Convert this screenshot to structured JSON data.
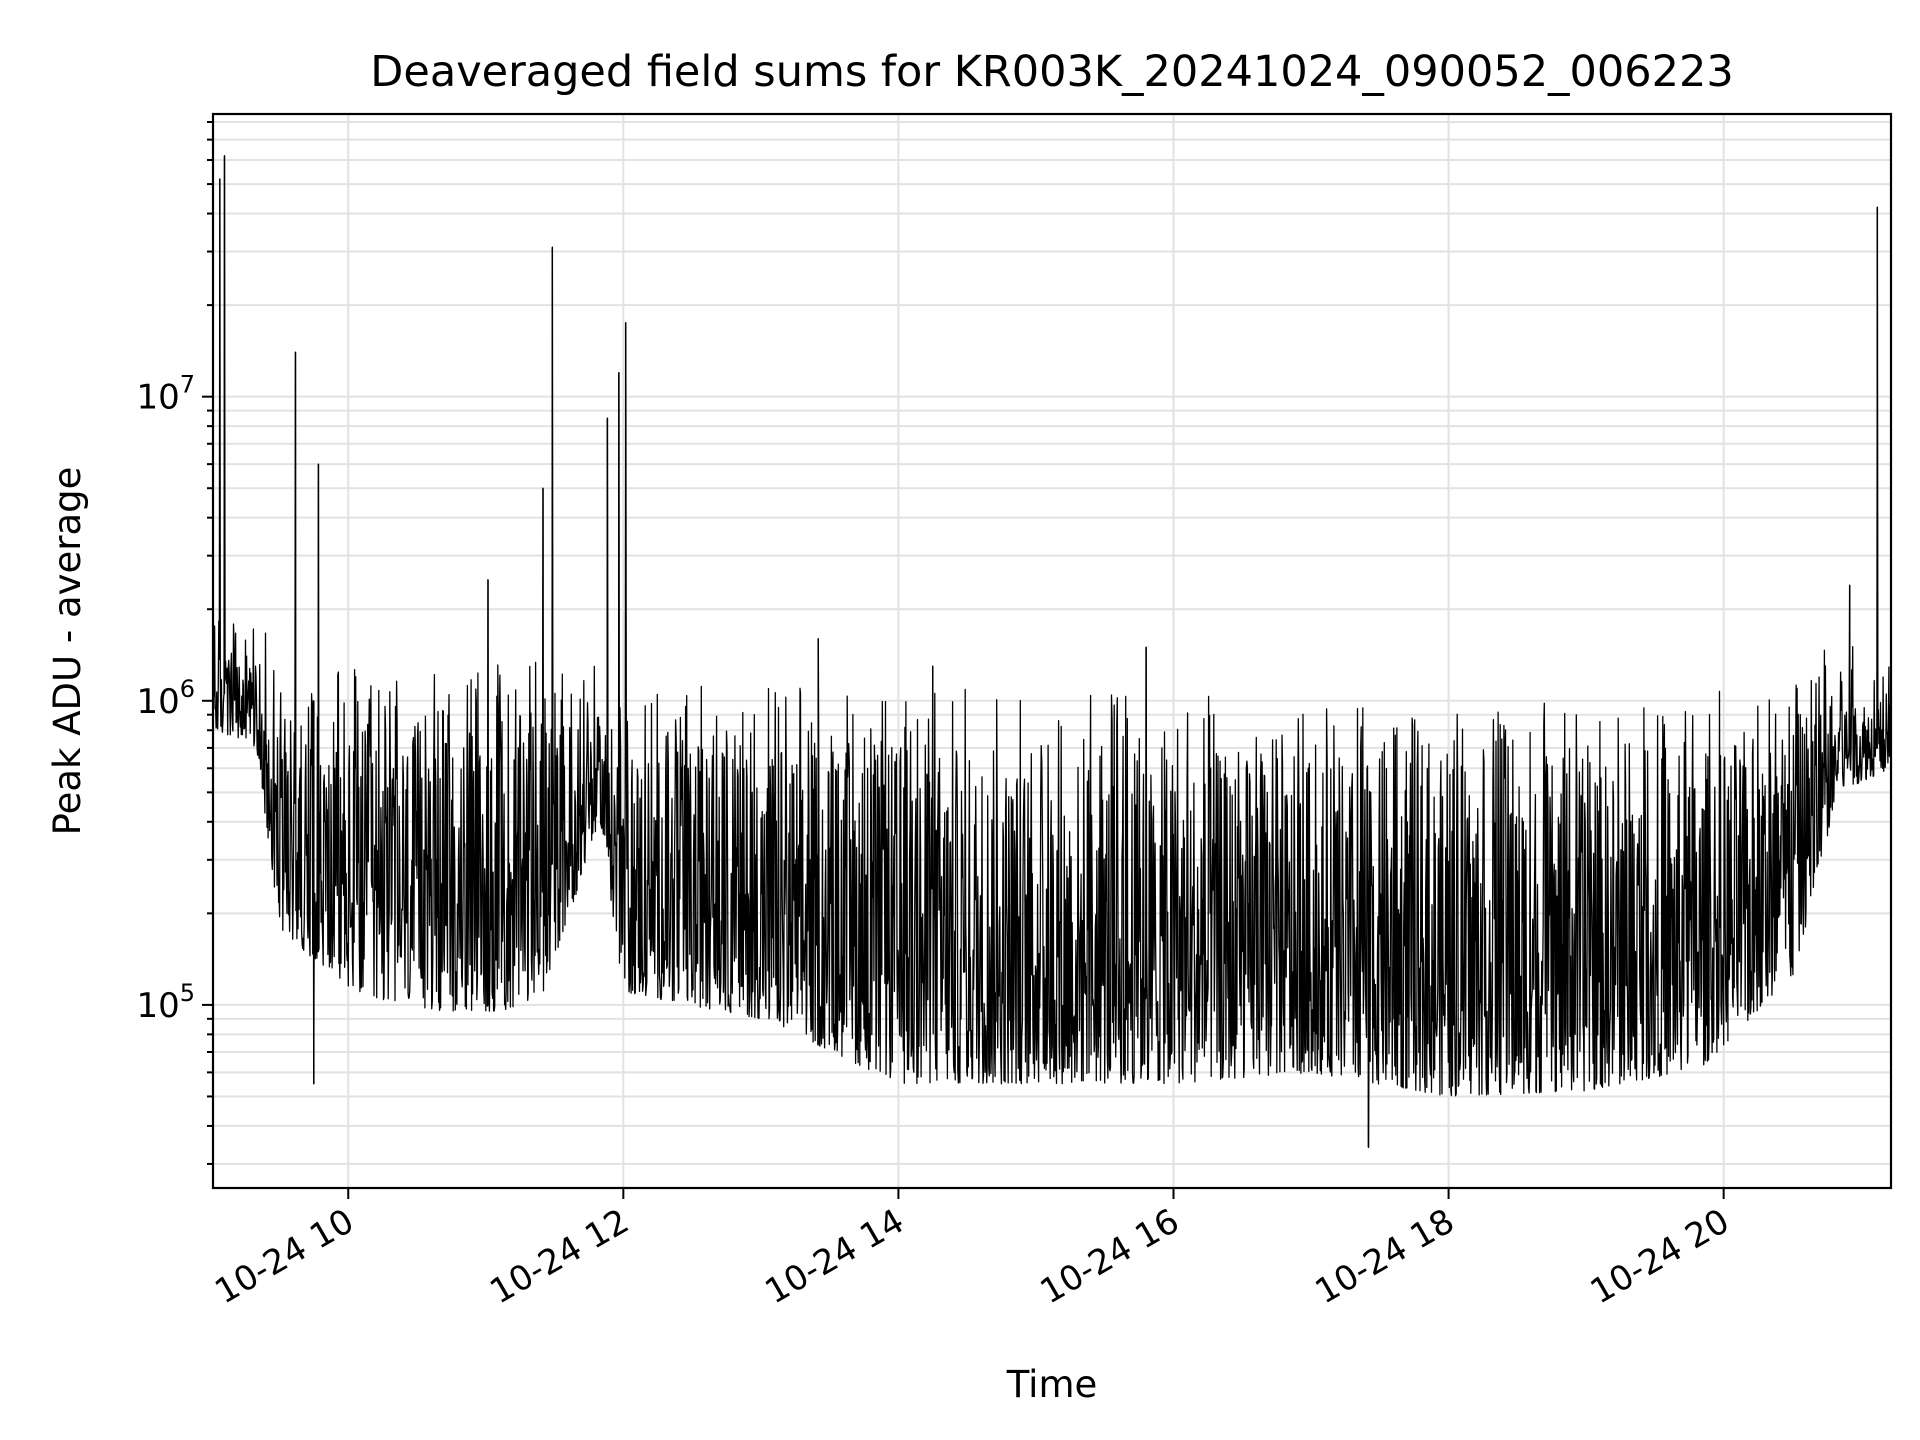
{
  "chart_data": {
    "type": "line",
    "title": "Deaveraged field sums for KR003K_20241024_090052_006223",
    "xlabel": "Time",
    "ylabel": "Peak ADU - average",
    "yscale": "log",
    "ylim": [
      25000,
      85000000
    ],
    "xlim": [
      "2024-10-24 09:01",
      "2024-10-24 21:13"
    ],
    "grid": true,
    "legend": "none",
    "x_tick_labels": [
      "10-24 10",
      "10-24 12",
      "10-24 14",
      "10-24 16",
      "10-24 18",
      "10-24 20"
    ],
    "x_ticks": [
      "2024-10-24 10:00",
      "2024-10-24 12:00",
      "2024-10-24 14:00",
      "2024-10-24 16:00",
      "2024-10-24 18:00",
      "2024-10-24 20:00"
    ],
    "y_ticks": [
      100000,
      1000000,
      10000000
    ],
    "y_tick_labels": [
      {
        "base": "10",
        "exp": "5"
      },
      {
        "base": "10",
        "exp": "6"
      },
      {
        "base": "10",
        "exp": "7"
      }
    ],
    "series_color": "#000000",
    "envelope": {
      "x": [
        "2024-10-24 09:01",
        "2024-10-24 09:20",
        "2024-10-24 09:30",
        "2024-10-24 10:00",
        "2024-10-24 10:40",
        "2024-10-24 11:10",
        "2024-10-24 11:25",
        "2024-10-24 11:50",
        "2024-10-24 12:00",
        "2024-10-24 13:00",
        "2024-10-24 14:00",
        "2024-10-24 15:00",
        "2024-10-24 16:00",
        "2024-10-24 17:00",
        "2024-10-24 18:00",
        "2024-10-24 19:00",
        "2024-10-24 19:50",
        "2024-10-24 20:30",
        "2024-10-24 20:50",
        "2024-10-24 21:13"
      ],
      "low": [
        800000,
        700000,
        180000,
        110000,
        95000,
        95000,
        110000,
        400000,
        110000,
        90000,
        55000,
        55000,
        55000,
        60000,
        50000,
        52000,
        62000,
        120000,
        500000,
        600000
      ],
      "high": [
        1500000,
        1400000,
        900000,
        850000,
        850000,
        900000,
        900000,
        900000,
        750000,
        750000,
        750000,
        700000,
        700000,
        650000,
        650000,
        650000,
        700000,
        900000,
        1100000,
        1000000
      ]
    },
    "spikes": [
      {
        "x": "2024-10-24 09:04",
        "y": 52000000
      },
      {
        "x": "2024-10-24 09:06",
        "y": 62000000
      },
      {
        "x": "2024-10-24 09:37",
        "y": 14000000
      },
      {
        "x": "2024-10-24 09:47",
        "y": 6000000
      },
      {
        "x": "2024-10-24 09:45",
        "y": 55000
      },
      {
        "x": "2024-10-24 11:01",
        "y": 2500000
      },
      {
        "x": "2024-10-24 11:25",
        "y": 5000000
      },
      {
        "x": "2024-10-24 11:29",
        "y": 31000000
      },
      {
        "x": "2024-10-24 11:53",
        "y": 8500000
      },
      {
        "x": "2024-10-24 11:58",
        "y": 12000000
      },
      {
        "x": "2024-10-24 12:01",
        "y": 17500000
      },
      {
        "x": "2024-10-24 13:25",
        "y": 1600000
      },
      {
        "x": "2024-10-24 14:15",
        "y": 1300000
      },
      {
        "x": "2024-10-24 15:48",
        "y": 1500000
      },
      {
        "x": "2024-10-24 17:25",
        "y": 34000
      },
      {
        "x": "2024-10-24 20:55",
        "y": 2400000
      },
      {
        "x": "2024-10-24 21:07",
        "y": 42000000
      }
    ]
  }
}
